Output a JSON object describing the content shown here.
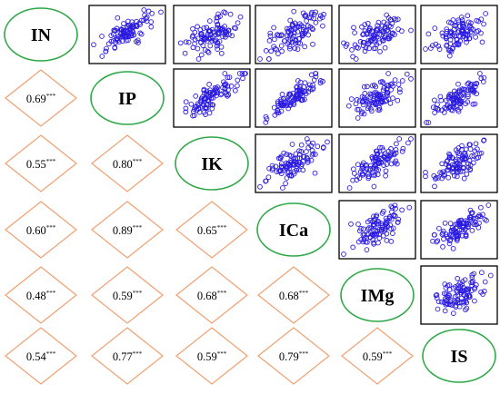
{
  "chart_data": {
    "type": "scatter-matrix",
    "variables": [
      "IN",
      "IP",
      "IK",
      "ICa",
      "IMg",
      "IS"
    ],
    "correlation_labels": [
      [
        "",
        "",
        "",
        "",
        "",
        ""
      ],
      [
        "0.69",
        "",
        "",
        "",
        "",
        ""
      ],
      [
        "0.55",
        "0.80",
        "",
        "",
        "",
        ""
      ],
      [
        "0.60",
        "0.89",
        "0.65",
        "",
        "",
        ""
      ],
      [
        "0.48",
        "0.59",
        "0.68",
        "0.68",
        "",
        ""
      ],
      [
        "0.54",
        "0.77",
        "0.59",
        "0.79",
        "0.59",
        ""
      ]
    ],
    "correlations": [
      [
        1,
        0.69,
        0.55,
        0.6,
        0.48,
        0.54
      ],
      [
        0.69,
        1,
        0.8,
        0.89,
        0.59,
        0.77
      ],
      [
        0.55,
        0.8,
        1,
        0.65,
        0.68,
        0.59
      ],
      [
        0.6,
        0.89,
        0.65,
        1,
        0.68,
        0.79
      ],
      [
        0.48,
        0.59,
        0.68,
        0.68,
        1,
        0.59
      ],
      [
        0.54,
        0.77,
        0.59,
        0.79,
        0.59,
        1
      ]
    ],
    "significance": "***",
    "points_per_panel": 100,
    "grid": false
  },
  "colors": {
    "ellipse_stroke": "#2ca846",
    "diamond_stroke": "#f0a070",
    "point_stroke": "#2b1be0",
    "panel_border": "#000000"
  }
}
